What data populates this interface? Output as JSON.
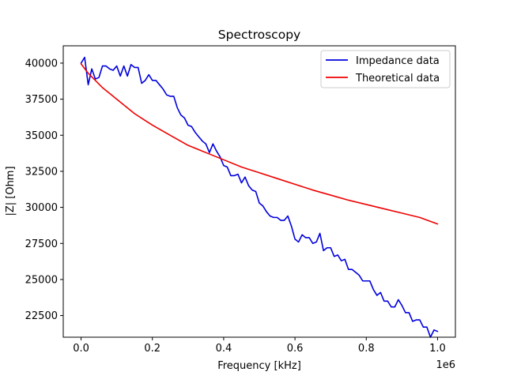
{
  "chart_data": {
    "type": "line",
    "title": "Spectroscopy",
    "xlabel": "Frequency [kHz]",
    "ylabel": "|Z| [Ohm]",
    "x_offset_label": "1e6",
    "xlim": [
      -50000,
      1050000
    ],
    "ylim": [
      21000,
      41200
    ],
    "x_ticks": [
      0,
      200000,
      400000,
      600000,
      800000,
      1000000
    ],
    "x_tick_labels": [
      "0.0",
      "0.2",
      "0.4",
      "0.6",
      "0.8",
      "1.0"
    ],
    "y_ticks": [
      22500,
      25000,
      27500,
      30000,
      32500,
      35000,
      37500,
      40000
    ],
    "y_tick_labels": [
      "22500",
      "25000",
      "27500",
      "30000",
      "32500",
      "35000",
      "37500",
      "40000"
    ],
    "legend": {
      "placement": "top-right"
    },
    "grid": false,
    "colors": {
      "impedance": "#0000dd",
      "theoretical": "#ee0000"
    },
    "series": [
      {
        "name": "Impedance data",
        "color": "#0000dd",
        "x": [
          0,
          10000,
          20000,
          30000,
          40000,
          50000,
          60000,
          70000,
          80000,
          90000,
          100000,
          110000,
          120000,
          130000,
          140000,
          150000,
          160000,
          170000,
          180000,
          190000,
          200000,
          210000,
          220000,
          230000,
          240000,
          250000,
          260000,
          270000,
          280000,
          290000,
          300000,
          310000,
          320000,
          330000,
          340000,
          350000,
          360000,
          370000,
          380000,
          390000,
          400000,
          410000,
          420000,
          430000,
          440000,
          450000,
          460000,
          470000,
          480000,
          490000,
          500000,
          510000,
          520000,
          530000,
          540000,
          550000,
          560000,
          570000,
          580000,
          590000,
          600000,
          610000,
          620000,
          630000,
          640000,
          650000,
          660000,
          670000,
          680000,
          690000,
          700000,
          710000,
          720000,
          730000,
          740000,
          750000,
          760000,
          770000,
          780000,
          790000,
          800000,
          810000,
          820000,
          830000,
          840000,
          850000,
          860000,
          870000,
          880000,
          890000,
          900000,
          910000,
          920000,
          930000,
          940000,
          950000,
          960000,
          970000,
          980000,
          990000,
          1000000
        ],
        "values": [
          40000,
          40400,
          38500,
          39600,
          38900,
          39000,
          39800,
          39800,
          39600,
          39500,
          39800,
          39100,
          39800,
          39100,
          39900,
          39700,
          39700,
          38600,
          38800,
          39200,
          38800,
          38800,
          38500,
          38200,
          37800,
          37700,
          37700,
          36900,
          36400,
          36200,
          35700,
          35600,
          35200,
          34900,
          34600,
          34400,
          33800,
          34400,
          33900,
          33500,
          32900,
          32800,
          32200,
          32200,
          32300,
          31700,
          32100,
          31500,
          31200,
          31100,
          30300,
          30100,
          29700,
          29400,
          29300,
          29300,
          29100,
          29100,
          29400,
          28700,
          27800,
          27600,
          28100,
          27900,
          27900,
          27500,
          27600,
          28200,
          27000,
          27200,
          27200,
          26600,
          26700,
          26300,
          26400,
          25700,
          25700,
          25500,
          25300,
          24900,
          24900,
          24900,
          24300,
          23900,
          24100,
          23500,
          23500,
          23100,
          23100,
          23600,
          23200,
          22700,
          22700,
          22100,
          22200,
          22200,
          21700,
          21700,
          21000,
          21500,
          21400
        ]
      },
      {
        "name": "Theoretical data",
        "color": "#ee0000",
        "x": [
          0,
          20000,
          40000,
          60000,
          80000,
          100000,
          125000,
          150000,
          175000,
          200000,
          250000,
          300000,
          350000,
          400000,
          450000,
          500000,
          550000,
          600000,
          650000,
          700000,
          750000,
          800000,
          850000,
          900000,
          950000,
          1000000
        ],
        "values": [
          39950,
          39300,
          38800,
          38300,
          37900,
          37500,
          37000,
          36500,
          36100,
          35700,
          35000,
          34300,
          33800,
          33300,
          32800,
          32400,
          32000,
          31600,
          31200,
          30850,
          30500,
          30200,
          29900,
          29600,
          29300,
          28850
        ]
      }
    ]
  }
}
